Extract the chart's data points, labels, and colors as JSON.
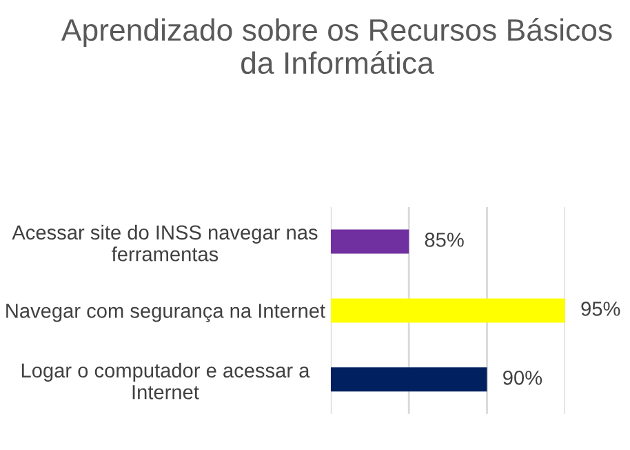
{
  "chart_data": {
    "type": "bar",
    "orientation": "horizontal",
    "title": "Aprendizado sobre os Recursos Básicos da Informática",
    "categories": [
      "Acessar site do INSS navegar nas ferramentas",
      "Navegar com segurança na Internet",
      "Logar o computador e acessar a Internet"
    ],
    "values": [
      85,
      95,
      90
    ],
    "colors": [
      "#7030a0",
      "#ffff00",
      "#002060"
    ],
    "value_labels": [
      "85%",
      "95%",
      "90%"
    ],
    "xlim": [
      80,
      95
    ],
    "xticks": [
      {
        "value": 80,
        "label": null
      },
      {
        "value": 85,
        "label": null
      },
      {
        "value": 90,
        "label": null
      },
      {
        "value": 95,
        "label": null
      }
    ],
    "tick_labels": "y",
    "grid": "x"
  }
}
